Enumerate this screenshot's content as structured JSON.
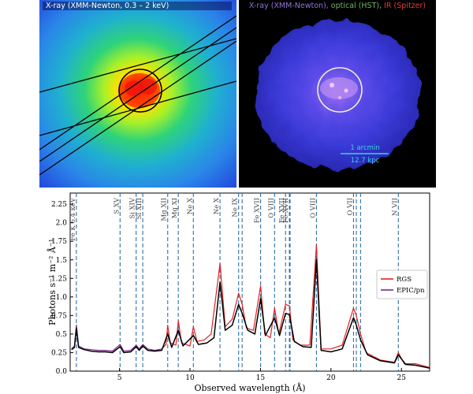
{
  "xray_panel": {
    "title": "X-ray (XMM-Newton, 0.3 – 2 keV)"
  },
  "composite_panel": {
    "title_parts": [
      {
        "text": "X-ray (XMM-Newton), ",
        "color": "#8e72d8"
      },
      {
        "text": "optical (HST), ",
        "color": "#6fb36a"
      },
      {
        "text": "IR (Spitzer)",
        "color": "#e23b3b"
      }
    ],
    "scale_label_top": "1 arcmin",
    "scale_label_bottom": "12.7 kpc",
    "scale_color": "#39d0e8"
  },
  "chart_data": {
    "type": "line",
    "xlabel": "Observed wavelength (Å)",
    "ylabel": "Photons s⁻¹ m⁻² Å⁻¹",
    "xlim": [
      1.5,
      27
    ],
    "ylim": [
      0,
      2.4
    ],
    "xticks": [
      5,
      10,
      15,
      20,
      25
    ],
    "yticks": [
      0.0,
      0.25,
      0.5,
      0.75,
      1.0,
      1.25,
      1.5,
      1.75,
      2.0,
      2.25
    ],
    "ytick_labels": [
      "0.0",
      "0.25",
      "0.5",
      "0.75",
      "1.0",
      "1.25",
      "1.5",
      "1.75",
      "2.0",
      "2.25"
    ],
    "legend": {
      "placement": "right",
      "entries": [
        {
          "name": "RGS",
          "color": "#e02020"
        },
        {
          "name": "EPIC/pn",
          "color": "#7b2a8c"
        }
      ]
    },
    "lines": [
      {
        "label": "Fe K 6.4 keV",
        "x": 1.94
      },
      {
        "label": "S XV",
        "x": 5.04
      },
      {
        "label": "Si XIV",
        "x": 6.18
      },
      {
        "label": "Si XIII",
        "x": 6.65
      },
      {
        "label": "Mg XII",
        "x": 8.42
      },
      {
        "label": "Mg XI",
        "x": 9.17
      },
      {
        "label": "Ne X",
        "x": 10.24
      },
      {
        "label": "Ne X",
        "x": 12.13
      },
      {
        "label": "Ne IX",
        "x": 13.45
      },
      {
        "label": "",
        "x": 13.7
      },
      {
        "label": "Fe XVII",
        "x": 15.01
      },
      {
        "label": "O VIII",
        "x": 16.0
      },
      {
        "label": "Fe XVII",
        "x": 16.78
      },
      {
        "label": "Fe XVII",
        "x": 17.05
      },
      {
        "label": "",
        "x": 17.1
      },
      {
        "label": "O VIII",
        "x": 18.97
      },
      {
        "label": "O VII",
        "x": 21.6
      },
      {
        "label": "",
        "x": 21.8
      },
      {
        "label": "",
        "x": 22.1
      },
      {
        "label": "N VII",
        "x": 24.78
      }
    ],
    "series": [
      {
        "name": "RGS",
        "color": "#e02020",
        "x": [
          8.0,
          8.3,
          8.42,
          8.6,
          9.0,
          9.17,
          9.4,
          10.0,
          10.24,
          10.5,
          11.0,
          11.5,
          12.13,
          12.5,
          13.0,
          13.45,
          13.7,
          14.0,
          14.5,
          15.01,
          15.3,
          15.7,
          16.0,
          16.3,
          16.78,
          17.05,
          17.3,
          17.8,
          18.5,
          18.97,
          19.3,
          20.0,
          20.8,
          21.6,
          21.8,
          22.1,
          22.5,
          23.5,
          24.5,
          24.78,
          25.2,
          26.0,
          27.0
        ],
        "values": [
          0.3,
          0.36,
          0.62,
          0.38,
          0.35,
          0.68,
          0.38,
          0.34,
          0.6,
          0.4,
          0.42,
          0.5,
          1.45,
          0.6,
          0.7,
          1.05,
          0.9,
          0.58,
          0.55,
          1.15,
          0.5,
          0.45,
          0.85,
          0.5,
          0.9,
          0.88,
          0.42,
          0.35,
          0.35,
          1.7,
          0.3,
          0.3,
          0.35,
          0.85,
          0.75,
          0.5,
          0.25,
          0.15,
          0.12,
          0.25,
          0.1,
          0.1,
          0.05
        ]
      },
      {
        "name": "EPIC/pn",
        "color": "#7b2a8c",
        "x": [
          1.6,
          1.8,
          1.94,
          2.1,
          2.5,
          3.0,
          3.5,
          4.0,
          4.5,
          5.04,
          5.3,
          5.8,
          6.18,
          6.4,
          6.65,
          7.0,
          7.5,
          8.0
        ],
        "values": [
          0.3,
          0.34,
          0.62,
          0.34,
          0.3,
          0.29,
          0.28,
          0.28,
          0.27,
          0.36,
          0.27,
          0.28,
          0.35,
          0.3,
          0.36,
          0.3,
          0.28,
          0.3
        ]
      },
      {
        "name": "model",
        "color": "#000000",
        "x": [
          1.6,
          1.8,
          1.94,
          2.1,
          2.5,
          3.0,
          3.5,
          4.0,
          4.5,
          5.04,
          5.3,
          5.8,
          6.18,
          6.4,
          6.65,
          7.0,
          7.5,
          8.0,
          8.42,
          8.7,
          9.17,
          9.5,
          10.24,
          10.6,
          11.2,
          11.7,
          12.13,
          12.5,
          13.0,
          13.45,
          13.7,
          14.1,
          14.6,
          15.01,
          15.35,
          16.0,
          16.35,
          16.78,
          17.05,
          17.4,
          18.0,
          18.6,
          18.97,
          19.3,
          20.0,
          20.8,
          21.6,
          21.8,
          22.1,
          22.6,
          23.5,
          24.5,
          24.78,
          25.3,
          26.0,
          27.0
        ],
        "values": [
          0.29,
          0.32,
          0.58,
          0.32,
          0.29,
          0.27,
          0.26,
          0.26,
          0.25,
          0.33,
          0.25,
          0.26,
          0.33,
          0.28,
          0.34,
          0.28,
          0.27,
          0.28,
          0.5,
          0.32,
          0.55,
          0.34,
          0.48,
          0.36,
          0.38,
          0.45,
          1.2,
          0.55,
          0.62,
          0.9,
          0.78,
          0.55,
          0.5,
          0.98,
          0.48,
          0.72,
          0.48,
          0.78,
          0.76,
          0.4,
          0.33,
          0.32,
          1.5,
          0.28,
          0.26,
          0.3,
          0.72,
          0.62,
          0.42,
          0.22,
          0.14,
          0.11,
          0.22,
          0.09,
          0.08,
          0.04
        ]
      }
    ]
  }
}
